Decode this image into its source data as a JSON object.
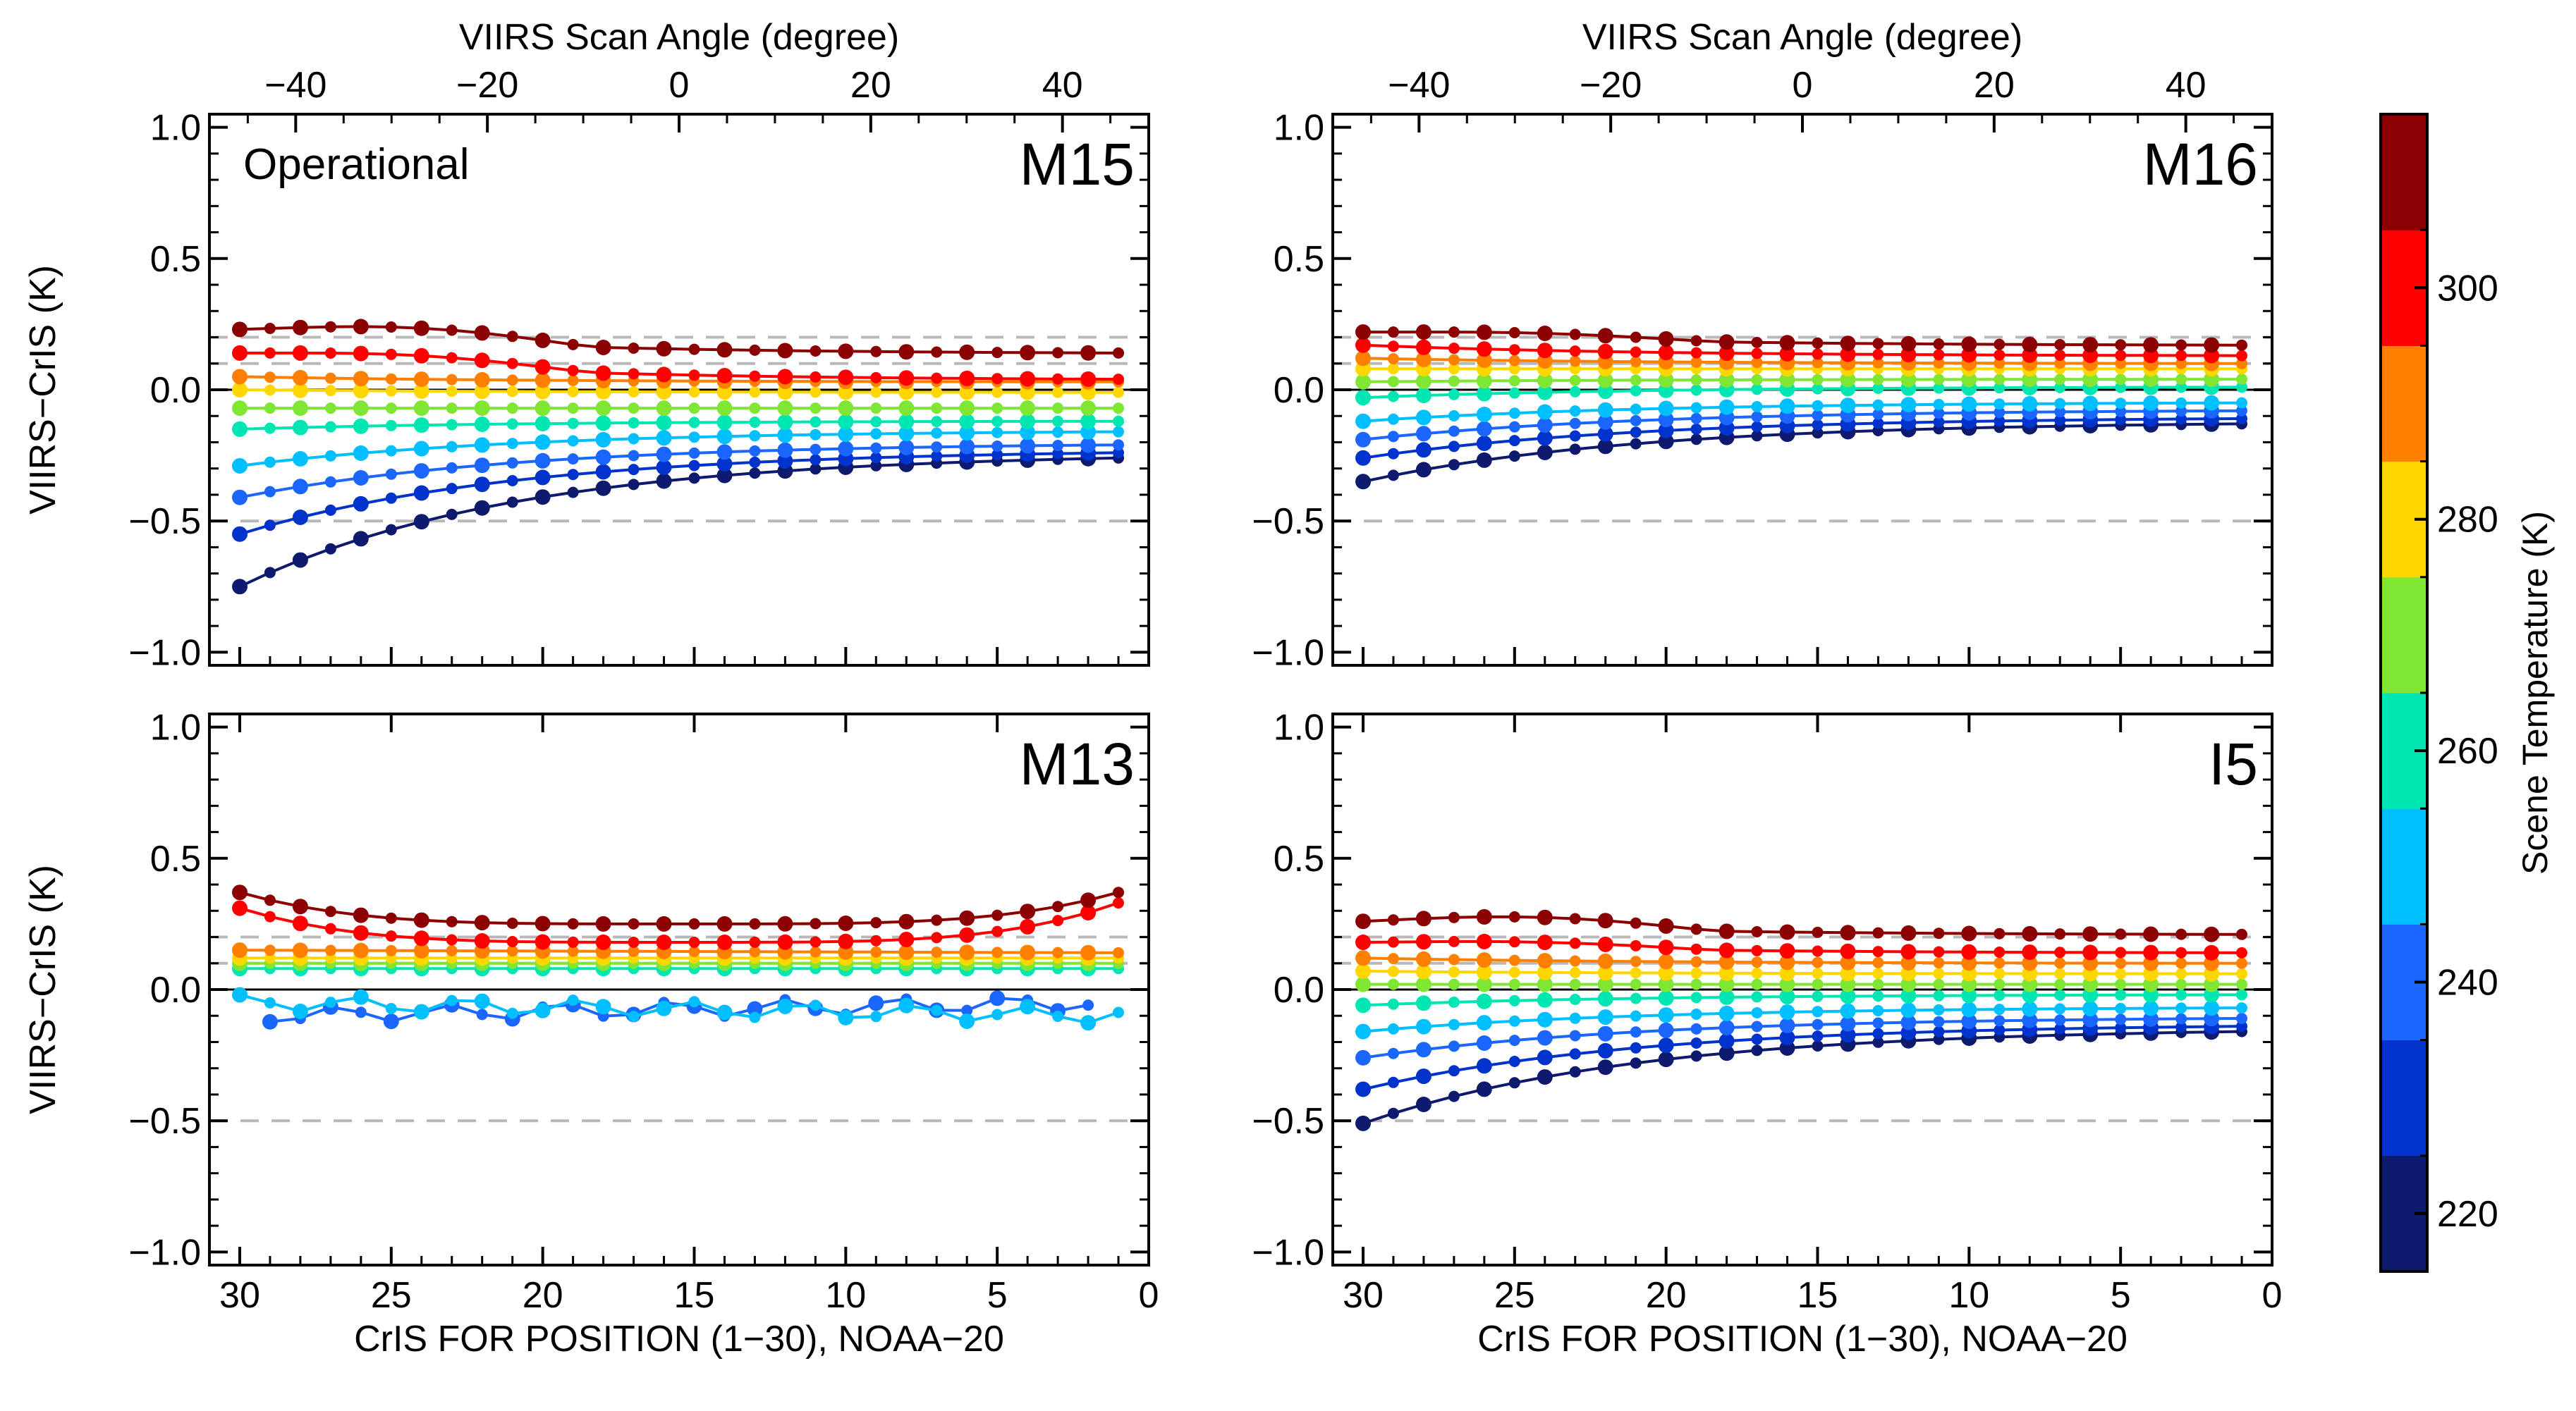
{
  "figure": {
    "top_axis_label": "VIIRS Scan Angle (degree)",
    "x_axis_label": "CrIS FOR POSITION (1−30), NOAA−20",
    "y_axis_label": "VIIRS−CrIS (K)",
    "colorbar_label": "Scene Temperature (K)",
    "reference_lines": [
      0.2,
      0.1,
      -0.5
    ],
    "zero_line": 0.0
  },
  "colorbar": {
    "range": [
      215,
      315
    ],
    "ticks": [
      220,
      240,
      260,
      280,
      300
    ],
    "colors": [
      "#0d1a6e",
      "#0033cc",
      "#1a66ff",
      "#00bfff",
      "#00e6b3",
      "#7fe633",
      "#ffd700",
      "#ff8000",
      "#ff0000",
      "#8b0000"
    ]
  },
  "chart_data": [
    {
      "type": "line",
      "panel": "M15",
      "title": "M15",
      "annotation": "Operational",
      "xlabel": "CrIS FOR POSITION (1−30), NOAA−20",
      "ylabel": "VIIRS−CrIS (K)",
      "top_xlabel": "VIIRS Scan Angle (degree)",
      "xlim": [
        31,
        0
      ],
      "ylim": [
        -1.05,
        1.05
      ],
      "top_xlim": [
        -49,
        49
      ],
      "xticks": [
        30,
        25,
        20,
        15,
        10,
        5,
        0
      ],
      "xtick_labels": [
        "30",
        "25",
        "20",
        "15",
        "10",
        "5",
        "0"
      ],
      "yticks": [
        1.0,
        0.5,
        0.0,
        -0.5,
        -1.0
      ],
      "ytick_labels": [
        "1.0",
        "0.5",
        "0.0",
        "−0.5",
        "−1.0"
      ],
      "top_ticks": [
        -40,
        -20,
        0,
        20,
        40
      ],
      "top_tick_labels": [
        "−40",
        "−20",
        "0",
        "20",
        "40"
      ],
      "series": [
        {
          "name": "220 K",
          "color": "#0d1a6e",
          "left": -0.75,
          "right": -0.26,
          "shape": "exp"
        },
        {
          "name": "230 K",
          "color": "#0033cc",
          "left": -0.55,
          "right": -0.24,
          "shape": "exp"
        },
        {
          "name": "240 K",
          "color": "#1a66ff",
          "left": -0.41,
          "right": -0.21,
          "shape": "exp"
        },
        {
          "name": "250 K",
          "color": "#00bfff",
          "left": -0.29,
          "right": -0.16,
          "shape": "exp"
        },
        {
          "name": "260 K",
          "color": "#00e6b3",
          "left": -0.15,
          "right": -0.12,
          "shape": "exp"
        },
        {
          "name": "270 K",
          "color": "#7fe633",
          "left": -0.07,
          "right": -0.07,
          "shape": "exp"
        },
        {
          "name": "280 K",
          "color": "#ffd700",
          "left": 0.0,
          "right": -0.01,
          "shape": "exp"
        },
        {
          "name": "290 K",
          "color": "#ff8000",
          "left": 0.05,
          "right": 0.03,
          "shape": "exp"
        },
        {
          "name": "300 K",
          "color": "#ff0000",
          "left": 0.14,
          "right": 0.04,
          "shape": "exp",
          "bump": 0.04
        },
        {
          "name": "310 K",
          "color": "#8b0000",
          "left": 0.23,
          "right": 0.14,
          "shape": "exp",
          "bump": 0.05
        }
      ]
    },
    {
      "type": "line",
      "panel": "M16",
      "title": "M16",
      "annotation": "",
      "xlabel": "CrIS FOR POSITION (1−30), NOAA−20",
      "ylabel": "VIIRS−CrIS (K)",
      "top_xlabel": "VIIRS Scan Angle (degree)",
      "xlim": [
        31,
        0
      ],
      "ylim": [
        -1.05,
        1.05
      ],
      "top_xlim": [
        -49,
        49
      ],
      "xticks": [
        30,
        25,
        20,
        15,
        10,
        5,
        0
      ],
      "xtick_labels": [
        "30",
        "25",
        "20",
        "15",
        "10",
        "5",
        "0"
      ],
      "yticks": [
        1.0,
        0.5,
        0.0,
        -0.5,
        -1.0
      ],
      "ytick_labels": [
        "1.0",
        "0.5",
        "0.0",
        "−0.5",
        "−1.0"
      ],
      "top_ticks": [
        -40,
        -20,
        0,
        20,
        40
      ],
      "top_tick_labels": [
        "−40",
        "−20",
        "0",
        "20",
        "40"
      ],
      "series": [
        {
          "name": "220 K",
          "color": "#0d1a6e",
          "left": -0.35,
          "right": -0.13,
          "shape": "exp"
        },
        {
          "name": "230 K",
          "color": "#0033cc",
          "left": -0.26,
          "right": -0.11,
          "shape": "exp"
        },
        {
          "name": "240 K",
          "color": "#1a66ff",
          "left": -0.19,
          "right": -0.08,
          "shape": "exp"
        },
        {
          "name": "250 K",
          "color": "#00bfff",
          "left": -0.12,
          "right": -0.05,
          "shape": "exp"
        },
        {
          "name": "260 K",
          "color": "#00e6b3",
          "left": -0.03,
          "right": 0.01,
          "shape": "exp"
        },
        {
          "name": "270 K",
          "color": "#7fe633",
          "left": 0.03,
          "right": 0.04,
          "shape": "exp"
        },
        {
          "name": "280 K",
          "color": "#ffd700",
          "left": 0.08,
          "right": 0.08,
          "shape": "exp"
        },
        {
          "name": "290 K",
          "color": "#ff8000",
          "left": 0.12,
          "right": 0.1,
          "shape": "exp"
        },
        {
          "name": "300 K",
          "color": "#ff0000",
          "left": 0.17,
          "right": 0.13,
          "shape": "exp"
        },
        {
          "name": "310 K",
          "color": "#8b0000",
          "left": 0.22,
          "right": 0.17,
          "shape": "exp",
          "bump": 0.02
        }
      ]
    },
    {
      "type": "line",
      "panel": "M13",
      "title": "M13",
      "annotation": "",
      "xlabel": "CrIS FOR POSITION (1−30), NOAA−20",
      "ylabel": "VIIRS−CrIS (K)",
      "top_xlabel": "",
      "xlim": [
        31,
        0
      ],
      "ylim": [
        -1.05,
        1.05
      ],
      "top_xlim": [
        -49,
        49
      ],
      "xticks": [
        30,
        25,
        20,
        15,
        10,
        5,
        0
      ],
      "xtick_labels": [
        "30",
        "25",
        "20",
        "15",
        "10",
        "5",
        "0"
      ],
      "yticks": [
        1.0,
        0.5,
        0.0,
        -0.5,
        -1.0
      ],
      "ytick_labels": [
        "1.0",
        "0.5",
        "0.0",
        "−0.5",
        "−1.0"
      ],
      "top_ticks": [],
      "top_tick_labels": [],
      "series": [
        {
          "name": "240 K",
          "color": "#1a66ff",
          "left": -0.1,
          "right": -0.05,
          "shape": "flat",
          "wiggle": 0.03,
          "xmin": 2,
          "xmax": 29
        },
        {
          "name": "250 K",
          "color": "#00bfff",
          "left": -0.05,
          "right": -0.1,
          "shape": "flat",
          "wiggle": 0.03
        },
        {
          "name": "260 K",
          "color": "#00e6b3",
          "left": 0.08,
          "right": 0.08,
          "shape": "flat"
        },
        {
          "name": "270 K",
          "color": "#7fe633",
          "left": 0.1,
          "right": 0.1,
          "shape": "flat"
        },
        {
          "name": "280 K",
          "color": "#ffd700",
          "left": 0.12,
          "right": 0.12,
          "shape": "flat"
        },
        {
          "name": "290 K",
          "color": "#ff8000",
          "left": 0.15,
          "right": 0.14,
          "shape": "flat"
        },
        {
          "name": "300 K",
          "color": "#ff0000",
          "left": 0.31,
          "right": 0.33,
          "shape": "u",
          "mid": 0.18
        },
        {
          "name": "310 K",
          "color": "#8b0000",
          "left": 0.37,
          "right": 0.37,
          "shape": "u",
          "mid": 0.25
        }
      ]
    },
    {
      "type": "line",
      "panel": "I5",
      "title": "I5",
      "annotation": "",
      "xlabel": "CrIS FOR POSITION (1−30), NOAA−20",
      "ylabel": "VIIRS−CrIS (K)",
      "top_xlabel": "",
      "xlim": [
        31,
        0
      ],
      "ylim": [
        -1.05,
        1.05
      ],
      "top_xlim": [
        -49,
        49
      ],
      "xticks": [
        30,
        25,
        20,
        15,
        10,
        5,
        0
      ],
      "xtick_labels": [
        "30",
        "25",
        "20",
        "15",
        "10",
        "5",
        "0"
      ],
      "yticks": [
        1.0,
        0.5,
        0.0,
        -0.5,
        -1.0
      ],
      "ytick_labels": [
        "1.0",
        "0.5",
        "0.0",
        "−0.5",
        "−1.0"
      ],
      "top_ticks": [],
      "top_tick_labels": [],
      "series": [
        {
          "name": "220 K",
          "color": "#0d1a6e",
          "left": -0.51,
          "right": -0.16,
          "shape": "exp"
        },
        {
          "name": "230 K",
          "color": "#0033cc",
          "left": -0.38,
          "right": -0.14,
          "shape": "exp"
        },
        {
          "name": "240 K",
          "color": "#1a66ff",
          "left": -0.26,
          "right": -0.11,
          "shape": "exp"
        },
        {
          "name": "250 K",
          "color": "#00bfff",
          "left": -0.16,
          "right": -0.07,
          "shape": "exp"
        },
        {
          "name": "260 K",
          "color": "#00e6b3",
          "left": -0.06,
          "right": -0.02,
          "shape": "exp"
        },
        {
          "name": "270 K",
          "color": "#7fe633",
          "left": 0.02,
          "right": 0.02,
          "shape": "exp"
        },
        {
          "name": "280 K",
          "color": "#ffd700",
          "left": 0.07,
          "right": 0.06,
          "shape": "exp"
        },
        {
          "name": "290 K",
          "color": "#ff8000",
          "left": 0.12,
          "right": 0.1,
          "shape": "exp"
        },
        {
          "name": "300 K",
          "color": "#ff0000",
          "left": 0.18,
          "right": 0.14,
          "shape": "exp",
          "bump": 0.02
        },
        {
          "name": "310 K",
          "color": "#8b0000",
          "left": 0.26,
          "right": 0.21,
          "shape": "exp",
          "bump": 0.04
        }
      ]
    }
  ]
}
